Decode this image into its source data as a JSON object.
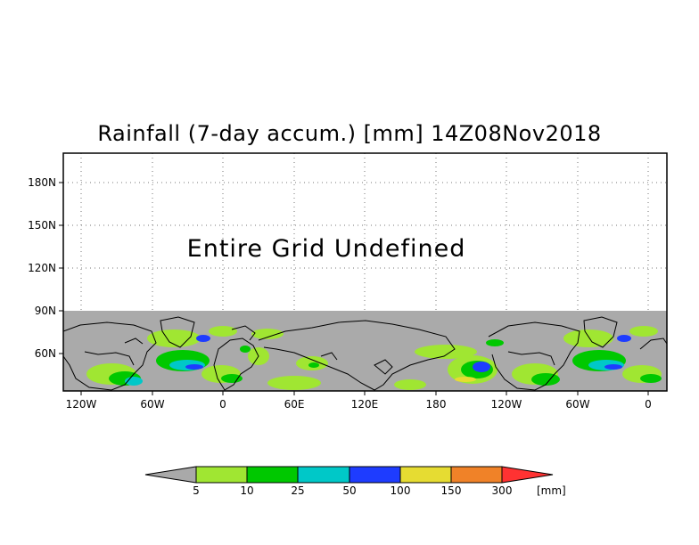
{
  "map": {
    "title": "Rainfall (7-day accum.) [mm] 14Z08Nov2018",
    "undefined_text": "Entire Grid Undefined",
    "lat_labels": [
      "180N",
      "150N",
      "120N",
      "90N",
      "60N"
    ],
    "lon_labels": [
      "120W",
      "60W",
      "0",
      "60E",
      "120E",
      "180",
      "120W",
      "60W",
      "0"
    ],
    "undefined_color": "#aaaaaa",
    "land_outline_color": "#000000"
  },
  "legend": {
    "tick_labels": [
      "5",
      "10",
      "25",
      "50",
      "100",
      "150",
      "300"
    ],
    "unit": "[mm]",
    "colors": [
      "#a9a9a9",
      "#a0e632",
      "#00c800",
      "#00c8c8",
      "#1e3cff",
      "#e6dc32",
      "#f08228",
      "#ff3232"
    ]
  }
}
